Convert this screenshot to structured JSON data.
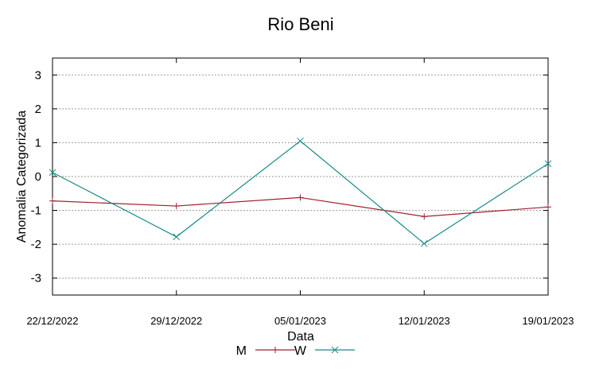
{
  "chart_data": {
    "type": "line",
    "title": "Rio Beni",
    "xlabel": "Data",
    "ylabel": "Anomalia Categorizada",
    "categories": [
      "22/12/2022",
      "29/12/2022",
      "05/01/2023",
      "12/01/2023",
      "19/01/2023"
    ],
    "ylim": [
      -3.5,
      3.5
    ],
    "yticks": [
      3,
      2,
      1,
      0,
      -1,
      -2,
      -3
    ],
    "ytick_labels": [
      "3",
      "2",
      "1",
      "0",
      "-1",
      "-2",
      "-3"
    ],
    "grid": true,
    "legend_position": "bottom",
    "series": [
      {
        "name": "M",
        "values": [
          -0.72,
          -0.87,
          -0.62,
          -1.18,
          -0.9
        ],
        "color": "#a0202c",
        "marker": "plus"
      },
      {
        "name": "W",
        "values": [
          0.12,
          -1.78,
          1.05,
          -1.98,
          0.38
        ],
        "color": "#1a8a8a",
        "marker": "x"
      }
    ]
  }
}
